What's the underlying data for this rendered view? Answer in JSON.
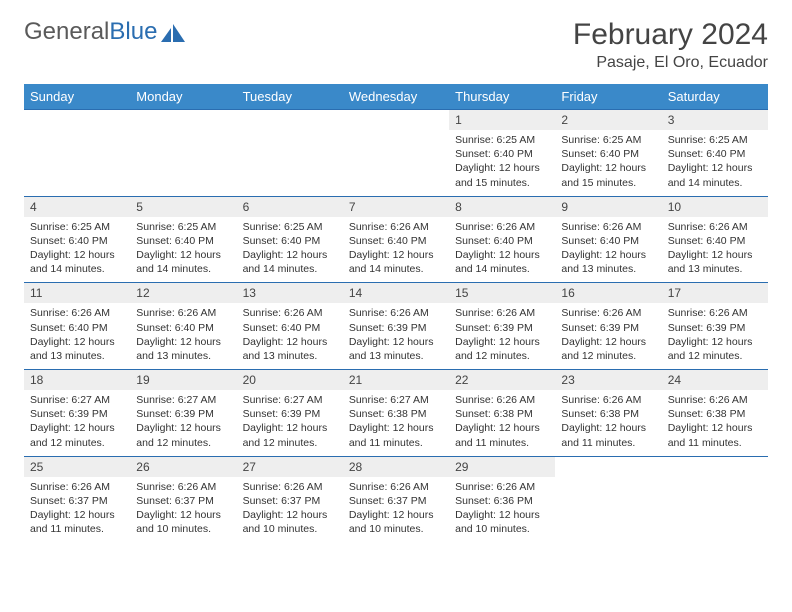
{
  "logo": {
    "text1": "General",
    "text2": "Blue"
  },
  "title": "February 2024",
  "location": "Pasaje, El Oro, Ecuador",
  "colors": {
    "header_bg": "#3a89c9",
    "header_text": "#ffffff",
    "daynum_bg": "#eeeeee",
    "border": "#2a6db0",
    "logo_gray": "#5a5a5a",
    "logo_blue": "#2a6db0"
  },
  "weekdays": [
    "Sunday",
    "Monday",
    "Tuesday",
    "Wednesday",
    "Thursday",
    "Friday",
    "Saturday"
  ],
  "weeks": [
    [
      null,
      null,
      null,
      null,
      {
        "n": "1",
        "sunrise": "6:25 AM",
        "sunset": "6:40 PM",
        "daylight": "12 hours and 15 minutes."
      },
      {
        "n": "2",
        "sunrise": "6:25 AM",
        "sunset": "6:40 PM",
        "daylight": "12 hours and 15 minutes."
      },
      {
        "n": "3",
        "sunrise": "6:25 AM",
        "sunset": "6:40 PM",
        "daylight": "12 hours and 14 minutes."
      }
    ],
    [
      {
        "n": "4",
        "sunrise": "6:25 AM",
        "sunset": "6:40 PM",
        "daylight": "12 hours and 14 minutes."
      },
      {
        "n": "5",
        "sunrise": "6:25 AM",
        "sunset": "6:40 PM",
        "daylight": "12 hours and 14 minutes."
      },
      {
        "n": "6",
        "sunrise": "6:25 AM",
        "sunset": "6:40 PM",
        "daylight": "12 hours and 14 minutes."
      },
      {
        "n": "7",
        "sunrise": "6:26 AM",
        "sunset": "6:40 PM",
        "daylight": "12 hours and 14 minutes."
      },
      {
        "n": "8",
        "sunrise": "6:26 AM",
        "sunset": "6:40 PM",
        "daylight": "12 hours and 14 minutes."
      },
      {
        "n": "9",
        "sunrise": "6:26 AM",
        "sunset": "6:40 PM",
        "daylight": "12 hours and 13 minutes."
      },
      {
        "n": "10",
        "sunrise": "6:26 AM",
        "sunset": "6:40 PM",
        "daylight": "12 hours and 13 minutes."
      }
    ],
    [
      {
        "n": "11",
        "sunrise": "6:26 AM",
        "sunset": "6:40 PM",
        "daylight": "12 hours and 13 minutes."
      },
      {
        "n": "12",
        "sunrise": "6:26 AM",
        "sunset": "6:40 PM",
        "daylight": "12 hours and 13 minutes."
      },
      {
        "n": "13",
        "sunrise": "6:26 AM",
        "sunset": "6:40 PM",
        "daylight": "12 hours and 13 minutes."
      },
      {
        "n": "14",
        "sunrise": "6:26 AM",
        "sunset": "6:39 PM",
        "daylight": "12 hours and 13 minutes."
      },
      {
        "n": "15",
        "sunrise": "6:26 AM",
        "sunset": "6:39 PM",
        "daylight": "12 hours and 12 minutes."
      },
      {
        "n": "16",
        "sunrise": "6:26 AM",
        "sunset": "6:39 PM",
        "daylight": "12 hours and 12 minutes."
      },
      {
        "n": "17",
        "sunrise": "6:26 AM",
        "sunset": "6:39 PM",
        "daylight": "12 hours and 12 minutes."
      }
    ],
    [
      {
        "n": "18",
        "sunrise": "6:27 AM",
        "sunset": "6:39 PM",
        "daylight": "12 hours and 12 minutes."
      },
      {
        "n": "19",
        "sunrise": "6:27 AM",
        "sunset": "6:39 PM",
        "daylight": "12 hours and 12 minutes."
      },
      {
        "n": "20",
        "sunrise": "6:27 AM",
        "sunset": "6:39 PM",
        "daylight": "12 hours and 12 minutes."
      },
      {
        "n": "21",
        "sunrise": "6:27 AM",
        "sunset": "6:38 PM",
        "daylight": "12 hours and 11 minutes."
      },
      {
        "n": "22",
        "sunrise": "6:26 AM",
        "sunset": "6:38 PM",
        "daylight": "12 hours and 11 minutes."
      },
      {
        "n": "23",
        "sunrise": "6:26 AM",
        "sunset": "6:38 PM",
        "daylight": "12 hours and 11 minutes."
      },
      {
        "n": "24",
        "sunrise": "6:26 AM",
        "sunset": "6:38 PM",
        "daylight": "12 hours and 11 minutes."
      }
    ],
    [
      {
        "n": "25",
        "sunrise": "6:26 AM",
        "sunset": "6:37 PM",
        "daylight": "12 hours and 11 minutes."
      },
      {
        "n": "26",
        "sunrise": "6:26 AM",
        "sunset": "6:37 PM",
        "daylight": "12 hours and 10 minutes."
      },
      {
        "n": "27",
        "sunrise": "6:26 AM",
        "sunset": "6:37 PM",
        "daylight": "12 hours and 10 minutes."
      },
      {
        "n": "28",
        "sunrise": "6:26 AM",
        "sunset": "6:37 PM",
        "daylight": "12 hours and 10 minutes."
      },
      {
        "n": "29",
        "sunrise": "6:26 AM",
        "sunset": "6:36 PM",
        "daylight": "12 hours and 10 minutes."
      },
      null,
      null
    ]
  ],
  "labels": {
    "sunrise": "Sunrise:",
    "sunset": "Sunset:",
    "daylight": "Daylight:"
  }
}
